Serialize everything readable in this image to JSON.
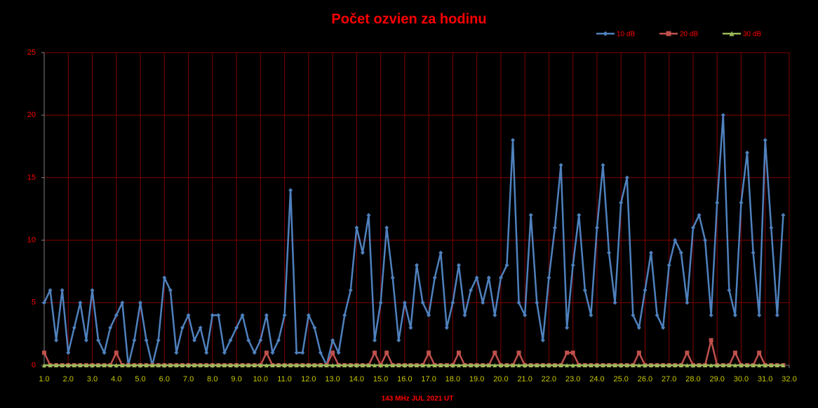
{
  "chart_data": {
    "type": "line",
    "title": "Počet ozvien za hodinu",
    "x_label": "143 MHz JUL  2021  UT",
    "legend": "top-right",
    "grid": true,
    "grid_color": "#800000",
    "xlim": [
      1,
      32
    ],
    "ylim": [
      0,
      25
    ],
    "yticks": [
      0,
      5,
      10,
      15,
      20,
      25
    ],
    "xticks": [
      {
        "value": 1,
        "label": "1.0"
      },
      {
        "value": 2,
        "label": "2.0"
      },
      {
        "value": 3,
        "label": "3.0"
      },
      {
        "value": 4,
        "label": "4.0"
      },
      {
        "value": 5,
        "label": "5.0"
      },
      {
        "value": 6,
        "label": "6.0"
      },
      {
        "value": 7,
        "label": "7.0"
      },
      {
        "value": 8,
        "label": "8.0"
      },
      {
        "value": 9,
        "label": "9.0"
      },
      {
        "value": 10,
        "label": "10.0"
      },
      {
        "value": 11,
        "label": "11.0"
      },
      {
        "value": 12,
        "label": "12.0"
      },
      {
        "value": 13,
        "label": "13.0"
      },
      {
        "value": 14,
        "label": "14.0"
      },
      {
        "value": 15,
        "label": "15.0"
      },
      {
        "value": 16,
        "label": "16.0"
      },
      {
        "value": 17,
        "label": "17.0"
      },
      {
        "value": 18,
        "label": "18.0"
      },
      {
        "value": 19,
        "label": "19.0"
      },
      {
        "value": 20,
        "label": "20.0"
      },
      {
        "value": 21,
        "label": "21.0"
      },
      {
        "value": 22,
        "label": "22.0"
      },
      {
        "value": 23,
        "label": "23.0"
      },
      {
        "value": 24,
        "label": "24.0"
      },
      {
        "value": 25,
        "label": "25.0"
      },
      {
        "value": 26,
        "label": "26.0"
      },
      {
        "value": 27,
        "label": "27.0"
      },
      {
        "value": 28,
        "label": "28.0"
      },
      {
        "value": 29,
        "label": "29.0"
      },
      {
        "value": 30,
        "label": "30.0"
      },
      {
        "value": 31,
        "label": "31.0"
      },
      {
        "value": 32,
        "label": "32.0"
      }
    ],
    "x": [
      1,
      1.25,
      1.5,
      1.75,
      2,
      2.25,
      2.5,
      2.75,
      3,
      3.25,
      3.5,
      3.75,
      4,
      4.25,
      4.5,
      4.75,
      5,
      5.25,
      5.5,
      5.75,
      6,
      6.25,
      6.5,
      6.75,
      7,
      7.25,
      7.5,
      7.75,
      8,
      8.25,
      8.5,
      8.75,
      9,
      9.25,
      9.5,
      9.75,
      10,
      10.25,
      10.5,
      10.75,
      11,
      11.25,
      11.5,
      11.75,
      12,
      12.25,
      12.5,
      12.75,
      13,
      13.25,
      13.5,
      13.75,
      14,
      14.25,
      14.5,
      14.75,
      15,
      15.25,
      15.5,
      15.75,
      16,
      16.25,
      16.5,
      16.75,
      17,
      17.25,
      17.5,
      17.75,
      18,
      18.25,
      18.5,
      18.75,
      19,
      19.25,
      19.5,
      19.75,
      20,
      20.25,
      20.5,
      20.75,
      21,
      21.25,
      21.5,
      21.75,
      22,
      22.25,
      22.5,
      22.75,
      23,
      23.25,
      23.5,
      23.75,
      24,
      24.25,
      24.5,
      24.75,
      25,
      25.25,
      25.5,
      25.75,
      26,
      26.25,
      26.5,
      26.75,
      27,
      27.25,
      27.5,
      27.75,
      28,
      28.25,
      28.5,
      28.75,
      29,
      29.25,
      29.5,
      29.75,
      30,
      30.25,
      30.5,
      30.75,
      31,
      31.25,
      31.5,
      31.75
    ],
    "series": [
      {
        "name": "10 dB",
        "color": "#4f81bd",
        "marker": "diamond",
        "values": [
          5,
          6,
          2,
          6,
          1,
          3,
          5,
          2,
          6,
          2,
          1,
          3,
          4,
          5,
          0,
          2,
          5,
          2,
          0,
          2,
          7,
          6,
          1,
          3,
          4,
          2,
          3,
          1,
          4,
          4,
          1,
          2,
          3,
          4,
          2,
          1,
          2,
          4,
          1,
          2,
          4,
          14,
          1,
          1,
          4,
          3,
          1,
          0,
          2,
          1,
          4,
          6,
          11,
          9,
          12,
          2,
          5,
          11,
          7,
          2,
          5,
          3,
          8,
          5,
          4,
          7,
          9,
          3,
          5,
          8,
          4,
          6,
          7,
          5,
          7,
          4,
          7,
          8,
          18,
          5,
          4,
          12,
          5,
          2,
          7,
          11,
          16,
          3,
          8,
          12,
          6,
          4,
          11,
          16,
          9,
          5,
          13,
          15,
          4,
          3,
          6,
          9,
          4,
          3,
          8,
          10,
          9,
          5,
          11,
          12,
          10,
          4,
          13,
          20,
          6,
          4,
          13,
          17,
          9,
          4,
          18,
          11,
          4,
          12
        ]
      },
      {
        "name": "20 dB",
        "color": "#c0504d",
        "marker": "square",
        "values": [
          1,
          0,
          0,
          0,
          0,
          0,
          0,
          0,
          0,
          0,
          0,
          0,
          1,
          0,
          0,
          0,
          0,
          0,
          0,
          0,
          0,
          0,
          0,
          0,
          0,
          0,
          0,
          0,
          0,
          0,
          0,
          0,
          0,
          0,
          0,
          0,
          0,
          1,
          0,
          0,
          0,
          0,
          0,
          0,
          0,
          0,
          0,
          0,
          1,
          0,
          0,
          0,
          0,
          0,
          0,
          1,
          0,
          1,
          0,
          0,
          0,
          0,
          0,
          0,
          1,
          0,
          0,
          0,
          0,
          1,
          0,
          0,
          0,
          0,
          0,
          1,
          0,
          0,
          0,
          1,
          0,
          0,
          0,
          0,
          0,
          0,
          0,
          1,
          1,
          0,
          0,
          0,
          0,
          0,
          0,
          0,
          0,
          0,
          0,
          1,
          0,
          0,
          0,
          0,
          0,
          0,
          0,
          1,
          0,
          0,
          0,
          2,
          0,
          0,
          0,
          1,
          0,
          0,
          0,
          1,
          0,
          0,
          0,
          0
        ]
      },
      {
        "name": "30 dB",
        "color": "#9bbb59",
        "marker": "triangle",
        "values": [
          0,
          0,
          0,
          0,
          0,
          0,
          0,
          0,
          0,
          0,
          0,
          0,
          0,
          0,
          0,
          0,
          0,
          0,
          0,
          0,
          0,
          0,
          0,
          0,
          0,
          0,
          0,
          0,
          0,
          0,
          0,
          0,
          0,
          0,
          0,
          0,
          0,
          0,
          0,
          0,
          0,
          0,
          0,
          0,
          0,
          0,
          0,
          0,
          0,
          0,
          0,
          0,
          0,
          0,
          0,
          0,
          0,
          0,
          0,
          0,
          0,
          0,
          0,
          0,
          0,
          0,
          0,
          0,
          0,
          0,
          0,
          0,
          0,
          0,
          0,
          0,
          0,
          0,
          0,
          0,
          0,
          0,
          0,
          0,
          0,
          0,
          0,
          0,
          0,
          0,
          0,
          0,
          0,
          0,
          0,
          0,
          0,
          0,
          0,
          0,
          0,
          0,
          0,
          0,
          0,
          0,
          0,
          0,
          0,
          0,
          0,
          0,
          0,
          0,
          0,
          0,
          0,
          0,
          0,
          0,
          0,
          0,
          0,
          0
        ]
      }
    ]
  }
}
